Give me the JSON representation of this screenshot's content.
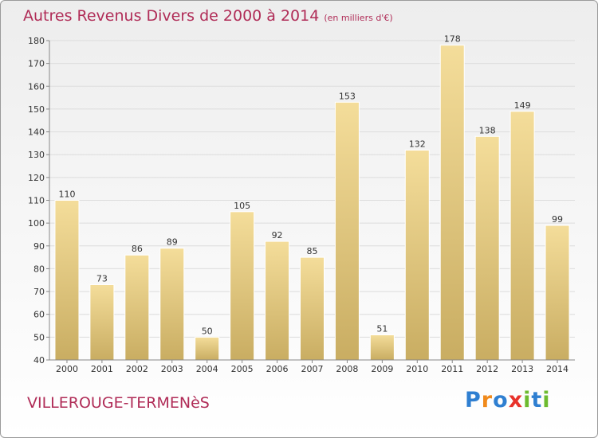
{
  "title": "Autres Revenus Divers de 2000 à 2014",
  "subtitle": "(en milliers d'€)",
  "commune": "VILLEROUGE-TERMENèS",
  "logo": {
    "letters": [
      "P",
      "r",
      "o",
      "x",
      "i",
      "t",
      "i"
    ],
    "colors": [
      "#2f7fd1",
      "#f08a1c",
      "#2f7fd1",
      "#e8322b",
      "#6dbb2f",
      "#2f7fd1",
      "#6dbb2f"
    ]
  },
  "colors": {
    "bar_top": "#f4dd9a",
    "bar_bottom": "#c9ad62",
    "title": "#b02c57"
  },
  "chart_data": {
    "type": "bar",
    "title": "Autres Revenus Divers de 2000 à 2014",
    "categories": [
      "2000",
      "2001",
      "2002",
      "2003",
      "2004",
      "2005",
      "2006",
      "2007",
      "2008",
      "2009",
      "2010",
      "2011",
      "2012",
      "2013",
      "2014"
    ],
    "values": [
      110,
      73,
      86,
      89,
      50,
      105,
      92,
      85,
      153,
      51,
      132,
      178,
      138,
      149,
      99
    ],
    "ylim": [
      40,
      180
    ],
    "yticks": [
      40,
      50,
      60,
      70,
      80,
      90,
      100,
      110,
      120,
      130,
      140,
      150,
      160,
      170,
      180
    ],
    "grid": true
  }
}
